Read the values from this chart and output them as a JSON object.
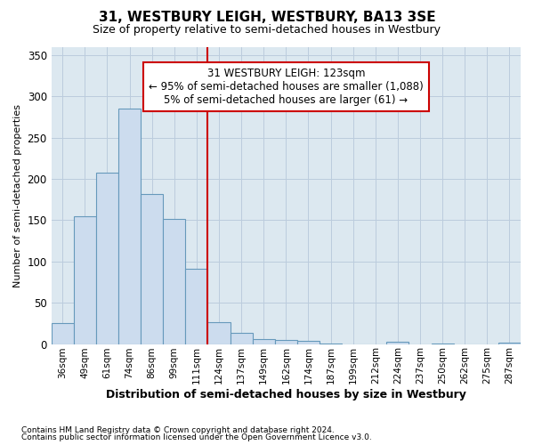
{
  "title": "31, WESTBURY LEIGH, WESTBURY, BA13 3SE",
  "subtitle": "Size of property relative to semi-detached houses in Westbury",
  "xlabel": "Distribution of semi-detached houses by size in Westbury",
  "ylabel": "Number of semi-detached properties",
  "categories": [
    "36sqm",
    "49sqm",
    "61sqm",
    "74sqm",
    "86sqm",
    "99sqm",
    "111sqm",
    "124sqm",
    "137sqm",
    "149sqm",
    "162sqm",
    "174sqm",
    "187sqm",
    "199sqm",
    "212sqm",
    "224sqm",
    "237sqm",
    "250sqm",
    "262sqm",
    "275sqm",
    "287sqm"
  ],
  "values": [
    25,
    155,
    208,
    285,
    182,
    152,
    91,
    26,
    14,
    6,
    5,
    4,
    1,
    0,
    0,
    3,
    0,
    1,
    0,
    0,
    2
  ],
  "bar_color": "#ccdcee",
  "bar_edge_color": "#6699bb",
  "grid_color": "#bbccdd",
  "vline_color": "#cc0000",
  "annotation_line1": "31 WESTBURY LEIGH: 123sqm",
  "annotation_line2": "← 95% of semi-detached houses are smaller (1,088)",
  "annotation_line3": "5% of semi-detached houses are larger (61) →",
  "annotation_box_color": "#cc0000",
  "ylim": [
    0,
    360
  ],
  "yticks": [
    0,
    50,
    100,
    150,
    200,
    250,
    300,
    350
  ],
  "footnote1": "Contains HM Land Registry data © Crown copyright and database right 2024.",
  "footnote2": "Contains public sector information licensed under the Open Government Licence v3.0.",
  "bg_color": "#ffffff",
  "plot_bg_color": "#dce8f0"
}
